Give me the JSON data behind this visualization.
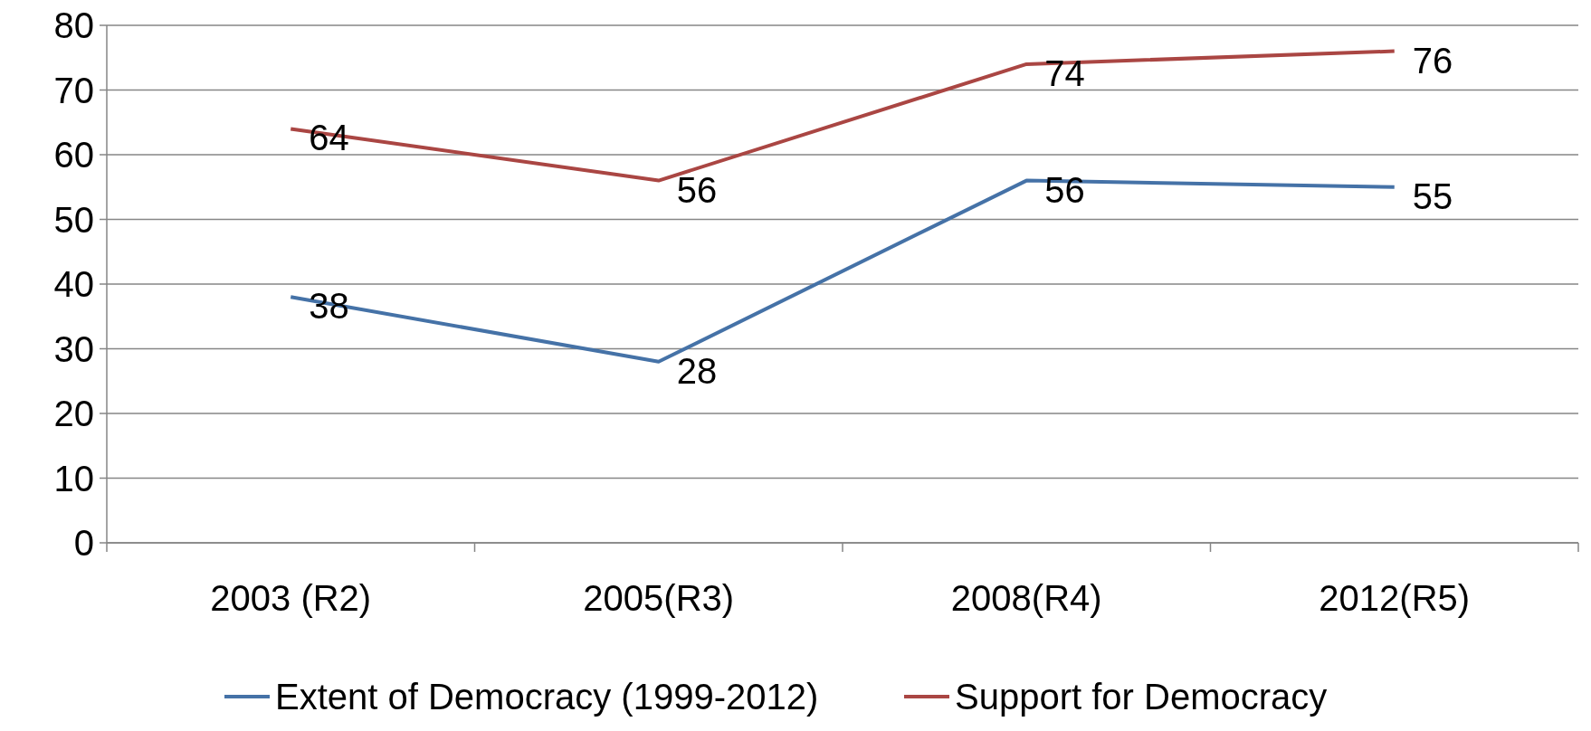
{
  "chart_data": {
    "type": "line",
    "categories": [
      "2003 (R2)",
      "2005(R3)",
      "2008(R4)",
      "2012(R5)"
    ],
    "series": [
      {
        "name": "Extent of Democracy (1999-2012)",
        "color": "#4572a7",
        "values": [
          38,
          28,
          56,
          55
        ]
      },
      {
        "name": "Support for Democracy",
        "color": "#aa4643",
        "values": [
          64,
          56,
          74,
          76
        ]
      }
    ],
    "ylim": [
      0,
      80
    ],
    "yticks": [
      0,
      10,
      20,
      30,
      40,
      50,
      60,
      70,
      80
    ],
    "grid": "y",
    "legend": "bottom",
    "data_labels": true,
    "marker": "none",
    "line_style": "solid"
  }
}
